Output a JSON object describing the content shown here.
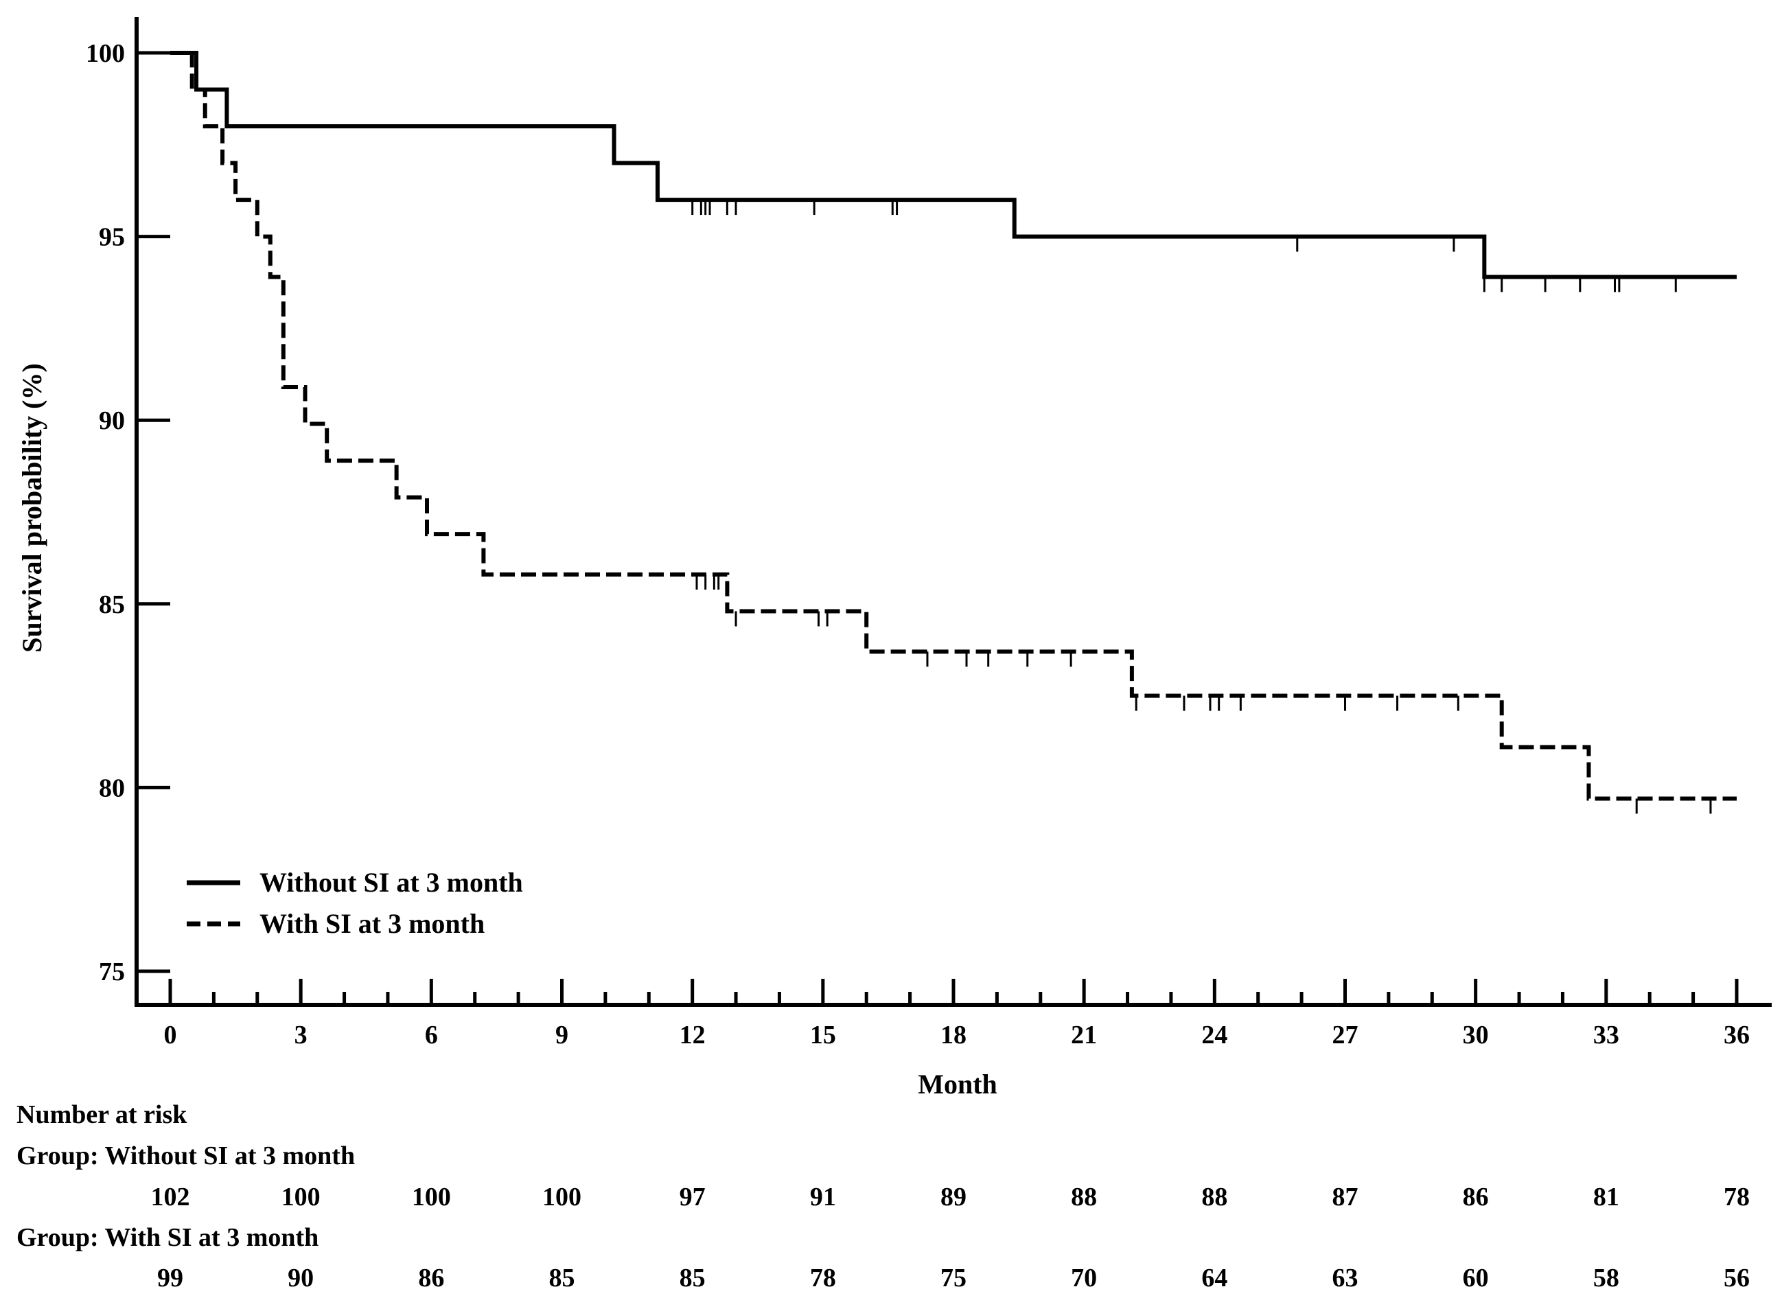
{
  "chart_data": {
    "type": "line",
    "subtype": "kaplan-meier-step",
    "xlabel": "Month",
    "ylabel": "Survival probability (%)",
    "xlim": [
      0,
      36
    ],
    "ylim": [
      75,
      100
    ],
    "x_ticks": [
      "0",
      "3",
      "6",
      "9",
      "12",
      "15",
      "18",
      "21",
      "24",
      "27",
      "30",
      "33",
      "36"
    ],
    "y_ticks": [
      "75",
      "80",
      "85",
      "90",
      "95",
      "100"
    ],
    "legend_position": "bottom-left",
    "series": [
      {
        "name": "Without SI at 3 month",
        "style": "solid",
        "steps": [
          [
            0,
            100
          ],
          [
            0.6,
            99
          ],
          [
            1.3,
            98
          ],
          [
            10.2,
            97
          ],
          [
            11.2,
            96
          ],
          [
            19.4,
            95
          ],
          [
            30.2,
            93.9
          ],
          [
            36,
            93.9
          ]
        ],
        "censor_times": [
          12.0,
          12.2,
          12.3,
          12.4,
          12.8,
          13.0,
          14.8,
          16.6,
          16.7,
          25.9,
          29.5,
          30.2,
          30.6,
          31.6,
          32.4,
          33.2,
          33.3,
          34.6
        ]
      },
      {
        "name": "With SI at 3 month",
        "style": "dashed",
        "steps": [
          [
            0,
            100
          ],
          [
            0.5,
            99
          ],
          [
            0.8,
            98
          ],
          [
            1.2,
            97
          ],
          [
            1.5,
            96
          ],
          [
            2.0,
            95
          ],
          [
            2.3,
            93.9
          ],
          [
            2.6,
            90.9
          ],
          [
            3.1,
            89.9
          ],
          [
            3.6,
            88.9
          ],
          [
            5.2,
            87.9
          ],
          [
            5.9,
            86.9
          ],
          [
            7.2,
            85.8
          ],
          [
            12.8,
            84.8
          ],
          [
            16.0,
            83.7
          ],
          [
            22.1,
            82.5
          ],
          [
            30.6,
            81.1
          ],
          [
            32.6,
            79.7
          ],
          [
            36,
            79.7
          ]
        ],
        "censor_times": [
          12.1,
          12.3,
          12.5,
          12.6,
          13.0,
          14.9,
          15.1,
          17.4,
          18.3,
          18.8,
          19.7,
          20.7,
          22.2,
          23.3,
          23.9,
          24.1,
          24.6,
          27.0,
          28.2,
          29.6,
          33.7,
          35.4
        ]
      }
    ],
    "risk_table": {
      "title": "Number at risk",
      "times": [
        0,
        3,
        6,
        9,
        12,
        15,
        18,
        21,
        24,
        27,
        30,
        33,
        36
      ],
      "groups": [
        {
          "label": "Group: Without SI at 3 month",
          "values": [
            "102",
            "100",
            "100",
            "100",
            "97",
            "91",
            "89",
            "88",
            "88",
            "87",
            "86",
            "81",
            "78"
          ]
        },
        {
          "label": "Group: With SI at 3 month",
          "values": [
            "99",
            "90",
            "86",
            "85",
            "85",
            "78",
            "75",
            "70",
            "64",
            "63",
            "60",
            "58",
            "56"
          ]
        }
      ]
    }
  }
}
